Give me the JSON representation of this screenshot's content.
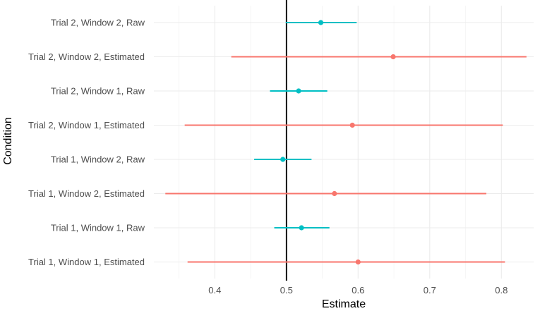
{
  "chart_data": {
    "type": "forest",
    "xlabel": "Estimate",
    "ylabel": "Condition",
    "xlim": [
      0.315,
      0.845
    ],
    "x_ticks": [
      0.4,
      0.5,
      0.6,
      0.7,
      0.8
    ],
    "x_tick_labels": [
      "0.4",
      "0.5",
      "0.6",
      "0.7",
      "0.8"
    ],
    "reference_line": 0.5,
    "grid": true,
    "legend": "none",
    "colors": {
      "Raw": "#00BFC4",
      "Estimated": "#F8766D",
      "reference": "#000000"
    },
    "rows": [
      {
        "label": "Trial 2, Window 2, Raw",
        "kind": "Raw",
        "estimate": 0.548,
        "low": 0.499,
        "high": 0.598
      },
      {
        "label": "Trial 2, Window 2, Estimated",
        "kind": "Estimated",
        "estimate": 0.649,
        "low": 0.423,
        "high": 0.835
      },
      {
        "label": "Trial 2, Window 1, Raw",
        "kind": "Raw",
        "estimate": 0.517,
        "low": 0.477,
        "high": 0.557
      },
      {
        "label": "Trial 2, Window 1, Estimated",
        "kind": "Estimated",
        "estimate": 0.592,
        "low": 0.358,
        "high": 0.802
      },
      {
        "label": "Trial 1, Window 2, Raw",
        "kind": "Raw",
        "estimate": 0.495,
        "low": 0.455,
        "high": 0.535
      },
      {
        "label": "Trial 1, Window 2, Estimated",
        "kind": "Estimated",
        "estimate": 0.567,
        "low": 0.331,
        "high": 0.779
      },
      {
        "label": "Trial 1, Window 1, Raw",
        "kind": "Raw",
        "estimate": 0.521,
        "low": 0.483,
        "high": 0.56
      },
      {
        "label": "Trial 1, Window 1, Estimated",
        "kind": "Estimated",
        "estimate": 0.6,
        "low": 0.362,
        "high": 0.805
      }
    ]
  }
}
